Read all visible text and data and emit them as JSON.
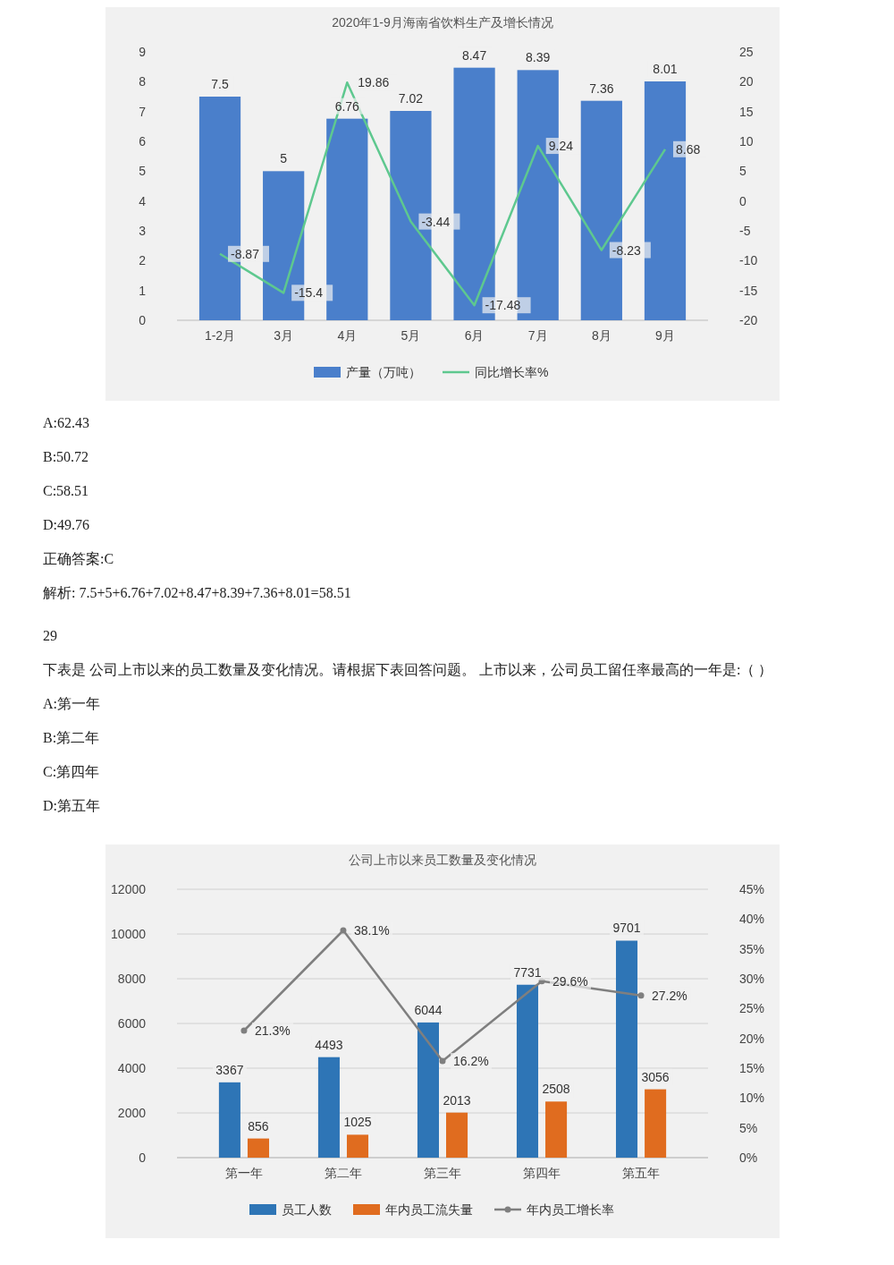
{
  "chart_data": [
    {
      "type": "bar",
      "title": "2020年1-9月海南省饮料生产及增长情况",
      "categories": [
        "1-2月",
        "3月",
        "4月",
        "5月",
        "6月",
        "7月",
        "8月",
        "9月"
      ],
      "series": [
        {
          "name": "产量（万吨）",
          "color": "#4a7fcb",
          "values": [
            7.5,
            5,
            6.76,
            7.02,
            8.47,
            8.39,
            7.36,
            8.01
          ]
        },
        {
          "name": "同比增长率%",
          "type": "line",
          "axis": "y2",
          "color": "#5ec88f",
          "marker": "none",
          "values": [
            -8.87,
            -15.4,
            19.86,
            -3.44,
            -17.48,
            9.24,
            -8.23,
            8.68
          ]
        }
      ],
      "ylim": [
        0,
        9
      ],
      "yticks": [
        0,
        1,
        2,
        3,
        4,
        5,
        6,
        7,
        8,
        9
      ],
      "y2lim": [
        -20,
        25
      ],
      "y2ticks": [
        -20,
        -15,
        -10,
        -5,
        0,
        5,
        10,
        15,
        20,
        25
      ],
      "data_labels": true,
      "legend": "bottom",
      "grid": false,
      "annotations": [
        "A:62.43",
        "B:50.72",
        "C:58.51",
        "D:49.76",
        "正确答案:C",
        "解析: 7.5+5+6.76+7.02+8.47+8.39+7.36+8.01=58.51"
      ]
    },
    {
      "type": "bar",
      "title": "公司上市以来员工数量及变化情况",
      "categories": [
        "第一年",
        "第二年",
        "第三年",
        "第四年",
        "第五年"
      ],
      "series": [
        {
          "name": "员工人数",
          "color": "#2e75b6",
          "values": [
            3367,
            4493,
            6044,
            7731,
            9701
          ]
        },
        {
          "name": "年内员工流失量",
          "color": "#e06c1f",
          "values": [
            856,
            1025,
            2013,
            2508,
            3056
          ]
        },
        {
          "name": "年内员工增长率",
          "type": "line",
          "axis": "y2",
          "color": "#7f7f7f",
          "marker": "circle",
          "values": [
            21.3,
            38.1,
            16.2,
            29.6,
            27.2
          ],
          "value_labels": [
            "21.3%",
            "38.1%",
            "16.2%",
            "29.6%",
            "27.2%"
          ]
        }
      ],
      "ylim": [
        0,
        12000
      ],
      "yticks": [
        0,
        2000,
        4000,
        6000,
        8000,
        10000,
        12000
      ],
      "y2lim": [
        0,
        45
      ],
      "y2ticks": [
        {
          "value": 0,
          "label": "0%"
        },
        {
          "value": 5,
          "label": "5%"
        },
        {
          "value": 10,
          "label": "10%"
        },
        {
          "value": 15,
          "label": "15%"
        },
        {
          "value": 20,
          "label": "20%"
        },
        {
          "value": 25,
          "label": "25%"
        },
        {
          "value": 30,
          "label": "30%"
        },
        {
          "value": 35,
          "label": "35%"
        },
        {
          "value": 40,
          "label": "40%"
        },
        {
          "value": 45,
          "label": "45%"
        }
      ],
      "data_labels": true,
      "legend": "bottom",
      "grid": "y",
      "annotations": [
        "29",
        "下表是 公司上市以来的员工数量及变化情况。请根据下表回答问题。 上市以来，公司员工留任率最高的一年是:（ ）",
        "A:第一年",
        "B:第二年",
        "C:第四年",
        "D:第五年"
      ]
    }
  ]
}
